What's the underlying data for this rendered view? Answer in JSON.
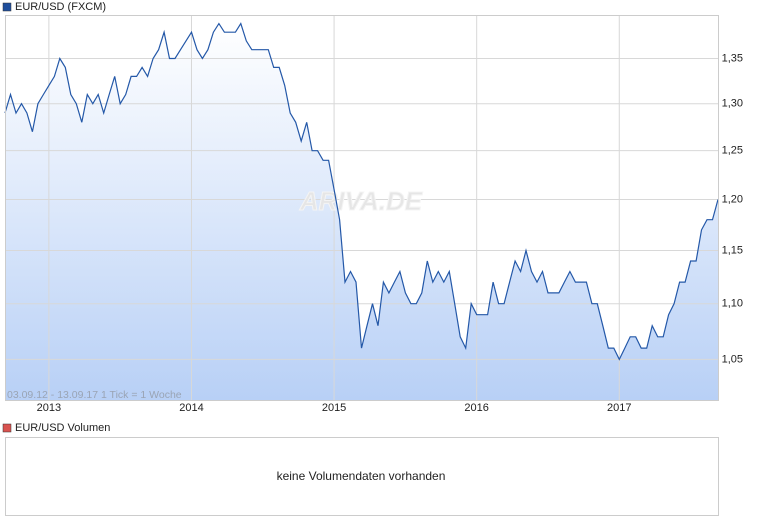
{
  "chart_data": {
    "type": "line",
    "legend_label": "EUR/USD (FXCM)",
    "footnote": "03.09.12 - 13.09.17   1 Tick = 1 Woche",
    "watermark": "ARIVA.DE",
    "log_scale": true,
    "grid": true,
    "categories": [
      null,
      null,
      null,
      null,
      null,
      null,
      null,
      null,
      "2013",
      null,
      null,
      null,
      null,
      null,
      null,
      null,
      null,
      null,
      null,
      null,
      null,
      null,
      null,
      null,
      null,
      null,
      null,
      null,
      null,
      null,
      null,
      null,
      null,
      null,
      "2014",
      null,
      null,
      null,
      null,
      null,
      null,
      null,
      null,
      null,
      null,
      null,
      null,
      null,
      null,
      null,
      null,
      null,
      null,
      null,
      null,
      null,
      null,
      null,
      null,
      null,
      "2015",
      null,
      null,
      null,
      null,
      null,
      null,
      null,
      null,
      null,
      null,
      null,
      null,
      null,
      null,
      null,
      null,
      null,
      null,
      null,
      null,
      null,
      null,
      null,
      null,
      null,
      "2016",
      null,
      null,
      null,
      null,
      null,
      null,
      null,
      null,
      null,
      null,
      null,
      null,
      null,
      null,
      null,
      null,
      null,
      null,
      null,
      null,
      null,
      null,
      null,
      null,
      null,
      "2017",
      null,
      null,
      null,
      null,
      null,
      null,
      null,
      null,
      null,
      null,
      null,
      null,
      null,
      null,
      null,
      null,
      null,
      null
    ],
    "series": [
      {
        "name": "EUR/USD (FXCM)",
        "color": "#2458a8",
        "values": [
          1.29,
          1.31,
          1.29,
          1.3,
          1.29,
          1.27,
          1.3,
          1.31,
          1.32,
          1.33,
          1.35,
          1.34,
          1.31,
          1.3,
          1.28,
          1.31,
          1.3,
          1.31,
          1.29,
          1.31,
          1.33,
          1.3,
          1.31,
          1.33,
          1.33,
          1.34,
          1.33,
          1.35,
          1.36,
          1.38,
          1.35,
          1.35,
          1.36,
          1.37,
          1.38,
          1.36,
          1.35,
          1.36,
          1.38,
          1.39,
          1.38,
          1.38,
          1.38,
          1.39,
          1.37,
          1.36,
          1.36,
          1.36,
          1.36,
          1.34,
          1.34,
          1.32,
          1.29,
          1.28,
          1.26,
          1.28,
          1.25,
          1.25,
          1.24,
          1.24,
          1.21,
          1.18,
          1.12,
          1.13,
          1.12,
          1.06,
          1.08,
          1.1,
          1.08,
          1.12,
          1.11,
          1.12,
          1.13,
          1.11,
          1.1,
          1.1,
          1.11,
          1.14,
          1.12,
          1.13,
          1.12,
          1.13,
          1.1,
          1.07,
          1.06,
          1.1,
          1.09,
          1.09,
          1.09,
          1.12,
          1.1,
          1.1,
          1.12,
          1.14,
          1.13,
          1.15,
          1.13,
          1.12,
          1.13,
          1.11,
          1.11,
          1.11,
          1.12,
          1.13,
          1.12,
          1.12,
          1.12,
          1.1,
          1.1,
          1.08,
          1.06,
          1.06,
          1.05,
          1.06,
          1.07,
          1.07,
          1.06,
          1.06,
          1.08,
          1.07,
          1.07,
          1.09,
          1.1,
          1.12,
          1.12,
          1.14,
          1.14,
          1.17,
          1.18,
          1.18,
          1.2
        ]
      }
    ],
    "ylim": [
      1.015,
      1.4
    ],
    "yticks": [
      {
        "value": 1.05,
        "label": "1,05"
      },
      {
        "value": 1.1,
        "label": "1,10"
      },
      {
        "value": 1.15,
        "label": "1,15"
      },
      {
        "value": 1.2,
        "label": "1,20"
      },
      {
        "value": 1.25,
        "label": "1,25"
      },
      {
        "value": 1.3,
        "label": "1,30"
      },
      {
        "value": 1.35,
        "label": "1,35"
      }
    ],
    "volume_label": "EUR/USD Volumen",
    "volume_message": "keine Volumendaten vorhanden"
  }
}
